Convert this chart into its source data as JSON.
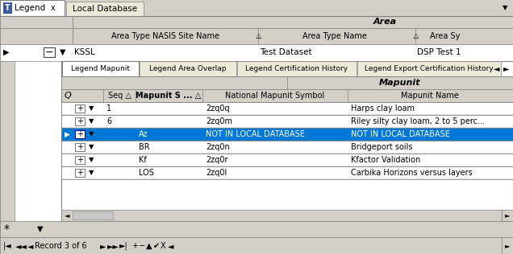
{
  "bg_color": "#d4d0c8",
  "white": "#ffffff",
  "blue_highlight": "#0078d7",
  "tab_bg": "#ece9d8",
  "border_color": "#808080",
  "border_dark": "#404040",
  "text_color": "#000000",
  "white_text": "#ffffff",
  "blue_icon": "#3c5a9a",
  "tab1_label": "Legend",
  "tab2_label": "Local Database",
  "area_group_label": "Area",
  "col1_header": "Area Type NASIS Site Name",
  "col2_header": "Area Type Name",
  "col3_header": "Area Sy",
  "row_col1": "KSSL",
  "row_col2": "Test Dataset",
  "row_col3": "DSP Test 1",
  "child_tabs": [
    "Legend Mapunit",
    "Legend Area Overlap",
    "Legend Certification History",
    "Legend Export Certification History"
  ],
  "mapunit_group": "Mapunit",
  "inner_headers": [
    "",
    "Seq △",
    "Mapunit S ... △",
    "National Mapunit Symbol",
    "Mapunit Name"
  ],
  "inner_bold": [
    false,
    false,
    true,
    false,
    false
  ],
  "rows": [
    {
      "seq": "1",
      "msym": "",
      "nat": "2zq0q",
      "name": "Harps clay loam",
      "sel": false,
      "arrow": false
    },
    {
      "seq": "6",
      "msym": "",
      "nat": "2zq0m",
      "name": "Riley silty clay loam, 2 to 5 perc...",
      "sel": false,
      "arrow": false
    },
    {
      "seq": "",
      "msym": "Az",
      "nat": "NOT IN LOCAL DATABASE",
      "name": "NOT IN LOCAL DATABASE",
      "sel": true,
      "arrow": true
    },
    {
      "seq": "",
      "msym": "BR",
      "nat": "2zq0n",
      "name": "Bridgeport soils",
      "sel": false,
      "arrow": false
    },
    {
      "seq": "",
      "msym": "Kf",
      "nat": "2zq0r",
      "name": "Kfactor Validation",
      "sel": false,
      "arrow": false
    },
    {
      "seq": "",
      "msym": "LOS",
      "nat": "2zq0l",
      "name": "Carbika Horizons versus layers",
      "sel": false,
      "arrow": false
    }
  ],
  "status_text": "Record 3 of 6",
  "figw": 6.36,
  "figh": 3.16,
  "dpi": 100
}
